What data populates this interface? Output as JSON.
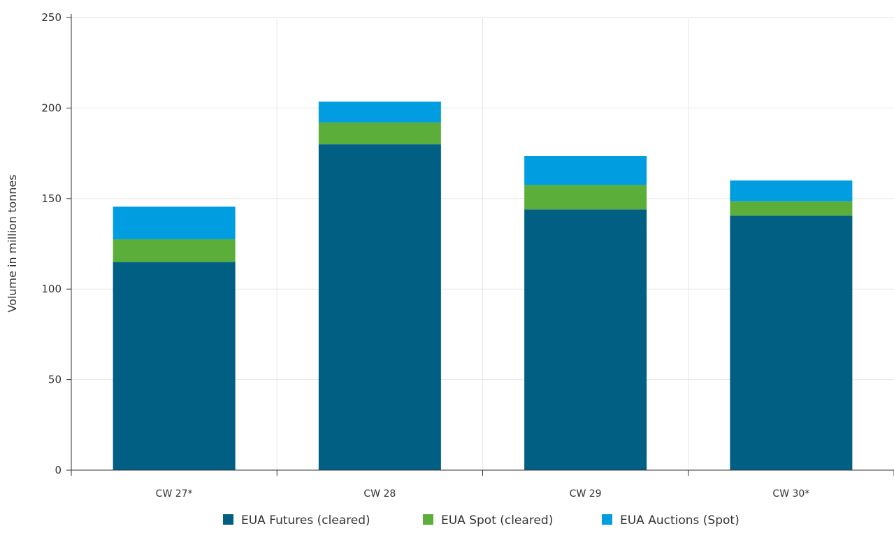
{
  "chart_data": {
    "type": "bar",
    "stacked": true,
    "title": "",
    "xlabel": "",
    "ylabel": "Volume in million tonnes",
    "ylim": [
      0,
      250
    ],
    "yticks": [
      0,
      50,
      100,
      150,
      200,
      250
    ],
    "grid": true,
    "legend_position": "bottom-center",
    "categories": [
      "CW 27*",
      "CW 28",
      "CW 29",
      "CW 30*"
    ],
    "series": [
      {
        "name": "EUA Futures (cleared)",
        "color": "#005f83",
        "values": [
          115,
          180,
          144,
          140.5
        ]
      },
      {
        "name": "EUA Spot (cleared)",
        "color": "#5bae3a",
        "values": [
          12.5,
          12,
          13.5,
          8
        ]
      },
      {
        "name": "EUA Auctions (Spot)",
        "color": "#009ee0",
        "values": [
          18,
          11.5,
          16,
          11.5
        ]
      }
    ]
  }
}
